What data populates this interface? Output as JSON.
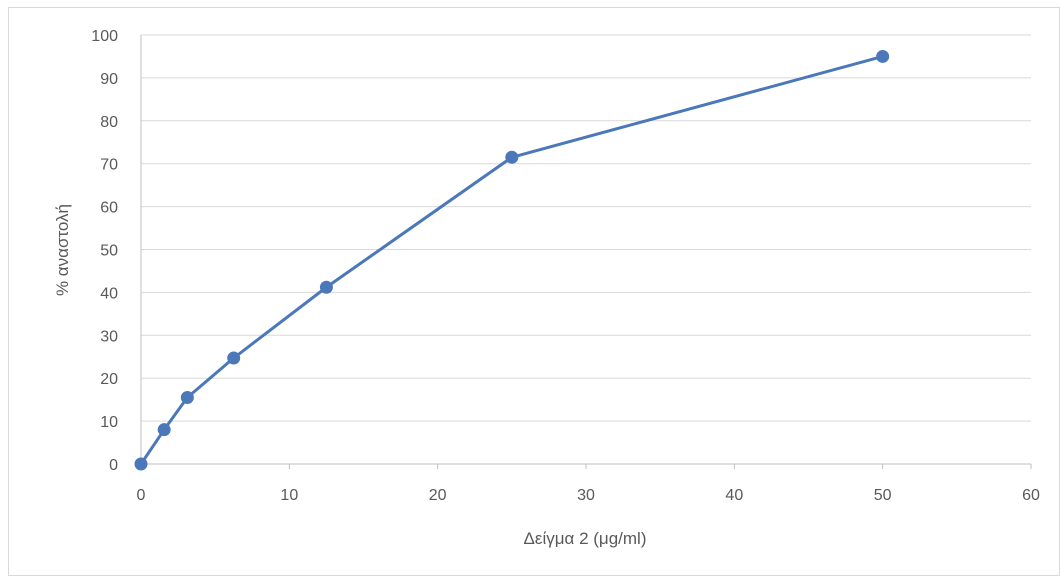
{
  "chart_data": {
    "type": "line",
    "title": "",
    "xlabel": "Δείγμα 2 (μg/ml)",
    "ylabel": "% αναστολή",
    "xlim": [
      0,
      60
    ],
    "ylim": [
      0,
      100
    ],
    "xticks": [
      0,
      10,
      20,
      30,
      40,
      50,
      60
    ],
    "yticks": [
      0,
      10,
      20,
      30,
      40,
      50,
      60,
      70,
      80,
      90,
      100
    ],
    "grid": "horizontal",
    "legend": "none",
    "series": [
      {
        "color": "#4a78b8",
        "marker": "circle",
        "points": [
          {
            "x": 0,
            "y": 0
          },
          {
            "x": 1.5625,
            "y": 8
          },
          {
            "x": 3.125,
            "y": 15.5
          },
          {
            "x": 6.25,
            "y": 24.7
          },
          {
            "x": 12.5,
            "y": 41.2
          },
          {
            "x": 25,
            "y": 71.5
          },
          {
            "x": 50,
            "y": 95
          }
        ]
      }
    ],
    "colors": {
      "gridline": "#d9d9d9",
      "axis": "#bfbfbf",
      "text": "#595959"
    }
  }
}
